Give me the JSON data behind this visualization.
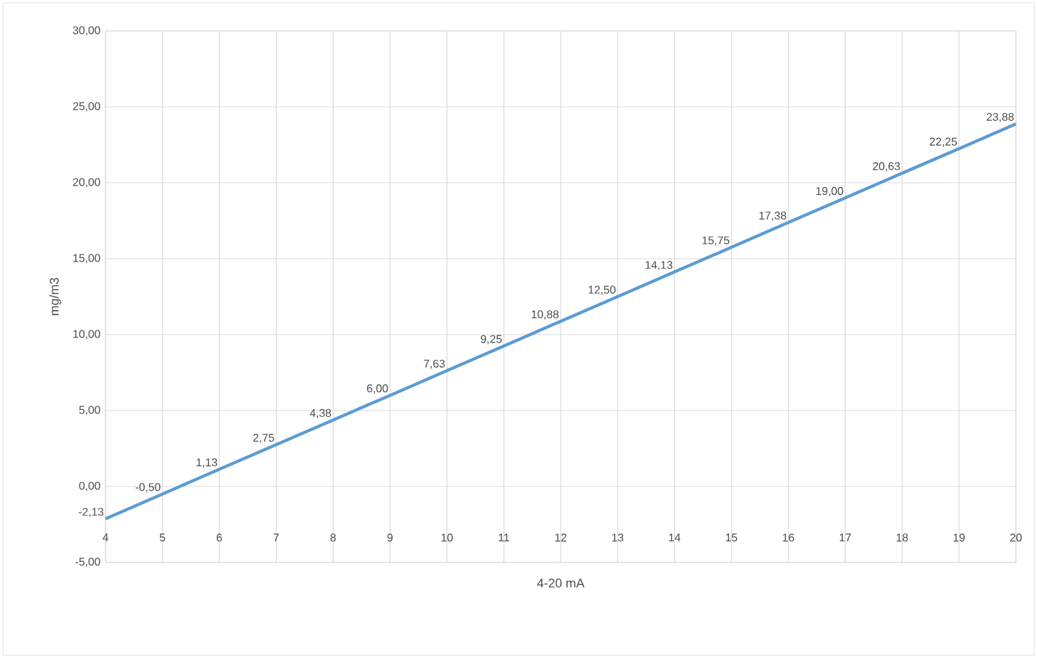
{
  "chart_data": {
    "type": "line",
    "xlabel": "4-20 mA",
    "ylabel": "mg/m3",
    "x": [
      4,
      5,
      6,
      7,
      8,
      9,
      10,
      11,
      12,
      13,
      14,
      15,
      16,
      17,
      18,
      19,
      20
    ],
    "series": [
      {
        "color": "#5b9bd5",
        "values": [
          -2.13,
          -0.5,
          1.13,
          2.75,
          4.38,
          6.0,
          7.63,
          9.25,
          10.88,
          12.5,
          14.13,
          15.75,
          17.38,
          19.0,
          20.63,
          22.25,
          23.88
        ],
        "value_labels": [
          "-2,13",
          "-0,50",
          "1,13",
          "2,75",
          "4,38",
          "6,00",
          "7,63",
          "9,25",
          "10,88",
          "12,50",
          "14,13",
          "15,75",
          "17,38",
          "19,00",
          "20,63",
          "22,25",
          "23,88"
        ]
      }
    ],
    "xlim": [
      4,
      20
    ],
    "xticks": [
      4,
      5,
      6,
      7,
      8,
      9,
      10,
      11,
      12,
      13,
      14,
      15,
      16,
      17,
      18,
      19,
      20
    ],
    "ylim": [
      -5,
      30
    ],
    "yticks": [
      {
        "value": -5,
        "label": "-5,00"
      },
      {
        "value": 0,
        "label": "0,00"
      },
      {
        "value": 5,
        "label": "5,00"
      },
      {
        "value": 10,
        "label": "10,00"
      },
      {
        "value": 15,
        "label": "15,00"
      },
      {
        "value": 20,
        "label": "20,00"
      },
      {
        "value": 25,
        "label": "25,00"
      },
      {
        "value": 30,
        "label": "30,00"
      }
    ],
    "grid": true,
    "marker": "none",
    "line_style": "solid"
  }
}
